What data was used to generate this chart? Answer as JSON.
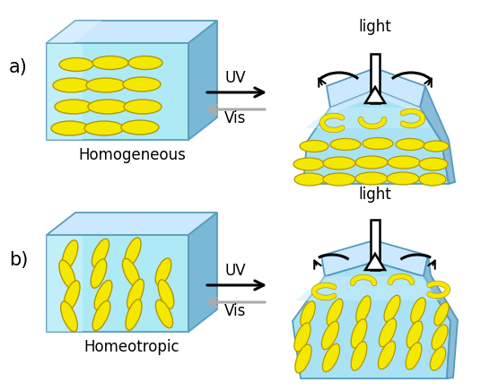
{
  "label_a": "a)",
  "label_b": "b)",
  "text_homogeneous": "Homogeneous",
  "text_homeotropic": "Homeotropic",
  "text_uv": "UV",
  "text_vis": "Vis",
  "text_light": "light",
  "box_face_color": "#b8eef8",
  "box_top_color": "#cce8ff",
  "box_side_color": "#7ab8d8",
  "ellipse_fc": "#f2e000",
  "ellipse_ec": "#b09000",
  "bent_face_color": "#a8e4f4",
  "bent_top_color": "#c8eeff",
  "bent_side_color": "#7ab0d0",
  "arrow_black": "#111111",
  "arrow_gray": "#aaaaaa",
  "bg_color": "#ffffff"
}
